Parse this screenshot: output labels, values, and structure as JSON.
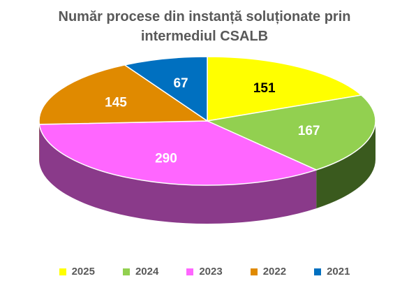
{
  "chart_data": {
    "type": "pie",
    "title_lines": [
      "Număr procese din instanță soluționate prin",
      "intermediul CSALB"
    ],
    "categories": [
      "2025",
      "2024",
      "2023",
      "2022",
      "2021"
    ],
    "values": [
      151,
      167,
      290,
      145,
      67
    ],
    "colors": [
      "#FFFF00",
      "#92D050",
      "#FF66FF",
      "#E08A00",
      "#0070C0"
    ],
    "side_colors": [
      "#B3B300",
      "#3A5A1E",
      "#8A3A8A",
      "#7A4A00",
      "#003A70"
    ],
    "label_colors": [
      "#000000",
      "#FFFFFF",
      "#FFFFFF",
      "#FFFFFF",
      "#FFFFFF"
    ],
    "legend_position": "bottom",
    "style": "3d"
  }
}
